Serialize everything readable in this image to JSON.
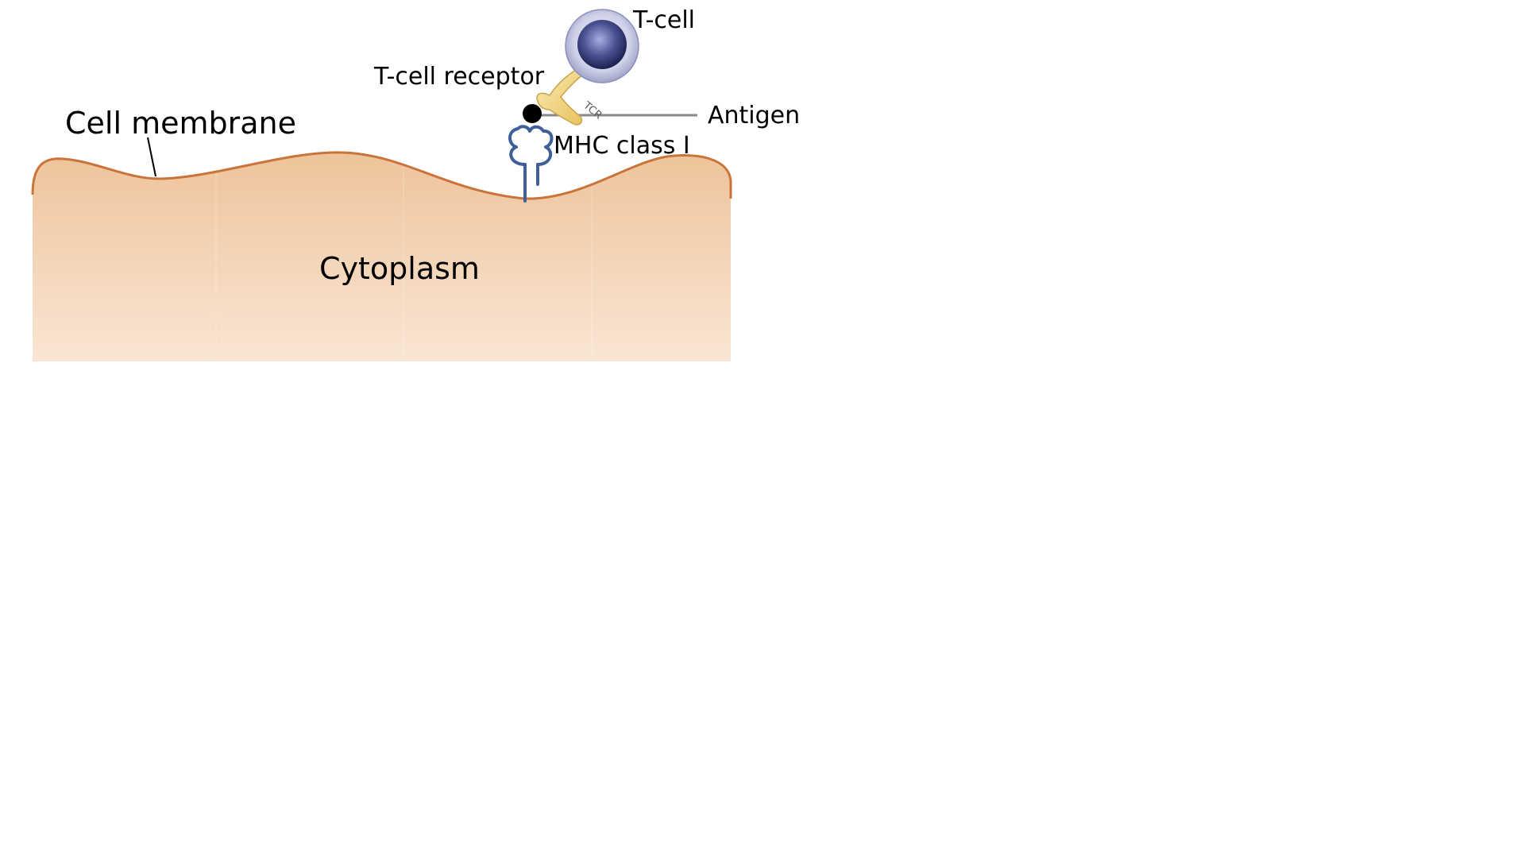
{
  "diagram": {
    "labels": {
      "cell_membrane": "Cell membrane",
      "cytoplasm": "Cytoplasm",
      "t_cell": "T-cell",
      "t_cell_receptor": "T-cell receptor",
      "tcr_tag": "TCR",
      "antigen": "Antigen",
      "mhc_class_i": "MHC class I"
    },
    "colors": {
      "cytoplasm_top": "#eec39a",
      "cytoplasm_bottom": "#f9e6d4",
      "membrane_edge": "#c8743a",
      "tcell_outer": "#cfd1e8",
      "tcell_inner": "#2c3268",
      "receptor": "#f3d77f",
      "antigen_dot": "#000000",
      "antigen_line": "#8a8a8a",
      "mhc": "#3e5f99"
    }
  }
}
